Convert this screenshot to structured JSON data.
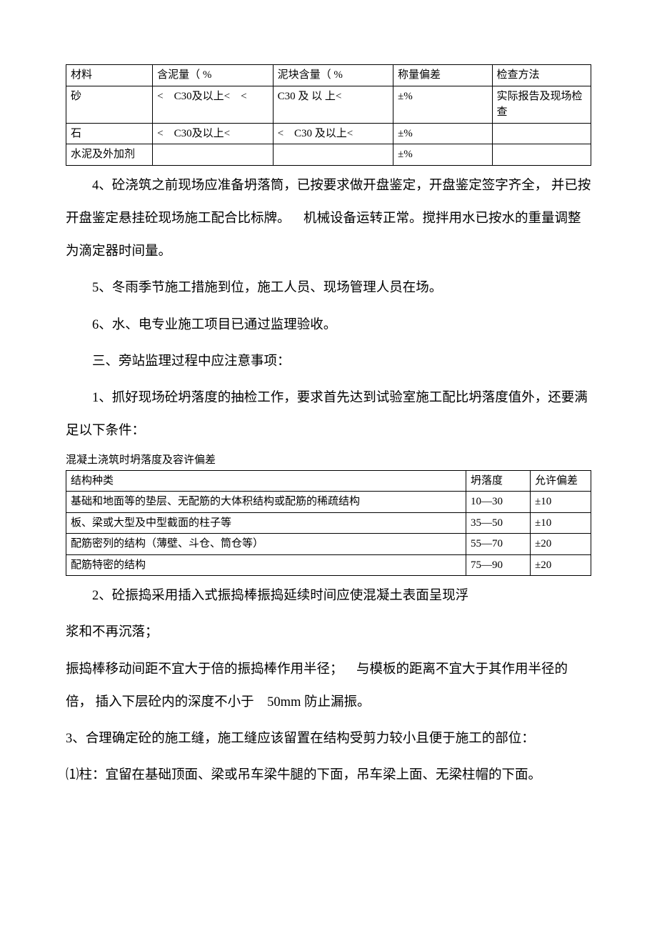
{
  "table1": {
    "header": [
      "材料",
      "含泥量（ %",
      "泥块含量（ %",
      "称量偏差",
      "检查方法"
    ],
    "rows": [
      [
        "砂",
        "< C30及以上< <",
        "C30 及 以 上<",
        "±%",
        "实际报告及现场检查"
      ],
      [
        "石",
        "< C30及以上<",
        "< C30 及以上<",
        "±%",
        ""
      ],
      [
        "水泥及外加剂",
        "",
        "",
        "±%",
        ""
      ]
    ]
  },
  "paragraphs1": [
    "4、砼浇筑之前现场应准备坍落筒，已按要求做开盘鉴定，开盘鉴定签字齐全， 并已按开盘鉴定悬挂砼现场施工配合比标牌。 机械设备运转正常。搅拌用水已按水的重量调整为滴定器时间量。",
    "5、冬雨季节施工措施到位，施工人员、现场管理人员在场。",
    "6、水、电专业施工项目已通过监理验收。",
    "三、旁站监理过程中应注意事项：",
    "1、抓好现场砼坍落度的抽检工作，要求首先达到试验室施工配比坍落度值外，还要满足以下条件："
  ],
  "table2_caption": "混凝土浇筑时坍落度及容许偏差",
  "table2": {
    "header": [
      "结构种类",
      "坍落度",
      "允许偏差"
    ],
    "rows": [
      [
        "基础和地面等的垫层、无配筋的大体积结构或配筋的稀疏结构",
        "10—30",
        "±10"
      ],
      [
        "板、梁或大型及中型截面的柱子等",
        "35—50",
        "±10"
      ],
      [
        "配筋密列的结构（薄壁、斗仓、筒仓等）",
        "55—70",
        "±20"
      ],
      [
        "配筋特密的结构",
        "75—90",
        "±20"
      ]
    ]
  },
  "paragraphs2": [
    {
      "text": "2、砼振捣采用插入式振捣棒振捣延续时间应使混凝土表面呈现浮",
      "indent": true
    },
    {
      "text": "浆和不再沉落；",
      "indent": false
    },
    {
      "text": "振捣棒移动间距不宜大于倍的振捣棒作用半径； 与模板的距离不宜大于其作用半径的倍， 插入下层砼内的深度不小于 50mm 防止漏振。",
      "indent": false
    },
    {
      "text": "3、合理确定砼的施工缝，施工缝应该留置在结构受剪力较小且便于施工的部位：",
      "indent": false
    },
    {
      "text": "⑴柱：宜留在基础顶面、梁或吊车梁牛腿的下面，吊车梁上面、无梁柱帽的下面。",
      "indent": false
    }
  ]
}
